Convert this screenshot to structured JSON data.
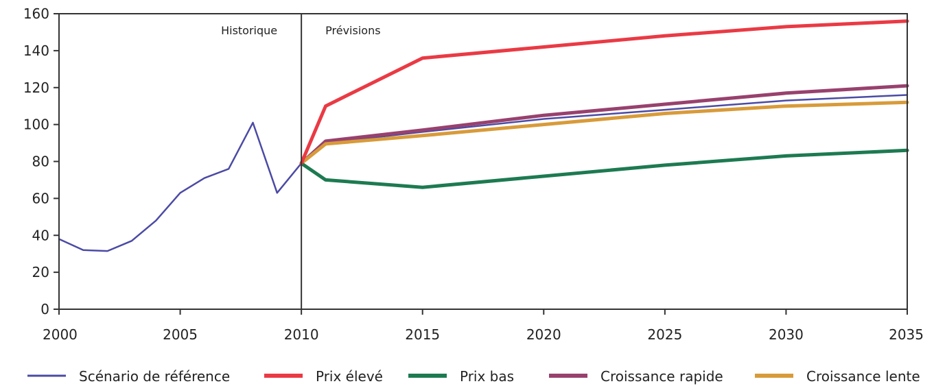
{
  "chart_data": {
    "type": "line",
    "title": "",
    "xlabel": "",
    "ylabel": "",
    "xlim": [
      2000,
      2035
    ],
    "ylim": [
      0,
      160
    ],
    "x_ticks": [
      "2000",
      "2005",
      "2010",
      "2015",
      "2020",
      "2025",
      "2030",
      "2035"
    ],
    "y_ticks": [
      "0",
      "20",
      "40",
      "60",
      "80",
      "100",
      "120",
      "140",
      "160"
    ],
    "grid": false,
    "legend_position": "bottom",
    "divider_x": 2010,
    "annotations": {
      "left": "Historique",
      "right": "Prévisions"
    },
    "series": [
      {
        "name": "Scénario de référence",
        "color": "#4b4aa5",
        "points": [
          [
            2000,
            38
          ],
          [
            2001,
            32
          ],
          [
            2002,
            31.5
          ],
          [
            2003,
            37
          ],
          [
            2004,
            48
          ],
          [
            2005,
            63
          ],
          [
            2006,
            71
          ],
          [
            2007,
            76
          ],
          [
            2008,
            101
          ],
          [
            2009,
            63
          ],
          [
            2010,
            79
          ],
          [
            2011,
            90
          ],
          [
            2015,
            96
          ],
          [
            2020,
            103
          ],
          [
            2025,
            108
          ],
          [
            2030,
            113
          ],
          [
            2035,
            116
          ]
        ]
      },
      {
        "name": "Prix élevé",
        "color": "#ea3a44",
        "points": [
          [
            2010,
            79
          ],
          [
            2011,
            110
          ],
          [
            2015,
            136
          ],
          [
            2020,
            142
          ],
          [
            2025,
            148
          ],
          [
            2030,
            153
          ],
          [
            2035,
            156
          ]
        ]
      },
      {
        "name": "Prix bas",
        "color": "#1d7a51",
        "points": [
          [
            2010,
            79
          ],
          [
            2011,
            70
          ],
          [
            2015,
            66
          ],
          [
            2020,
            72
          ],
          [
            2025,
            78
          ],
          [
            2030,
            83
          ],
          [
            2035,
            86
          ]
        ]
      },
      {
        "name": "Croissance rapide",
        "color": "#98416e",
        "points": [
          [
            2010,
            79
          ],
          [
            2011,
            91
          ],
          [
            2015,
            97
          ],
          [
            2020,
            105
          ],
          [
            2025,
            111
          ],
          [
            2030,
            117
          ],
          [
            2035,
            121
          ]
        ]
      },
      {
        "name": "Croissance lente",
        "color": "#d89b3a",
        "points": [
          [
            2010,
            79
          ],
          [
            2011,
            89.5
          ],
          [
            2015,
            94
          ],
          [
            2020,
            100
          ],
          [
            2025,
            106
          ],
          [
            2030,
            110
          ],
          [
            2035,
            112
          ]
        ]
      }
    ]
  }
}
